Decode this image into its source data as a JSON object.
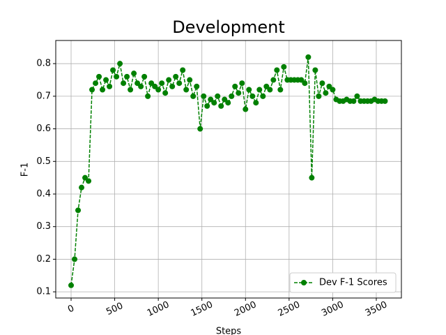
{
  "chart_data": {
    "type": "line",
    "title": "Development",
    "x_label": "Steps",
    "y_label": "F-1",
    "x": [
      0,
      40,
      80,
      120,
      160,
      200,
      240,
      280,
      320,
      360,
      400,
      440,
      480,
      520,
      560,
      600,
      640,
      680,
      720,
      760,
      800,
      840,
      880,
      920,
      960,
      1000,
      1040,
      1080,
      1120,
      1160,
      1200,
      1240,
      1280,
      1320,
      1360,
      1400,
      1440,
      1480,
      1520,
      1560,
      1600,
      1640,
      1680,
      1720,
      1760,
      1800,
      1840,
      1880,
      1920,
      1960,
      2000,
      2040,
      2080,
      2120,
      2160,
      2200,
      2240,
      2280,
      2320,
      2360,
      2400,
      2440,
      2480,
      2520,
      2560,
      2600,
      2640,
      2680,
      2720,
      2760,
      2800,
      2840,
      2880,
      2920,
      2960,
      3000,
      3040,
      3080,
      3120,
      3160,
      3200,
      3240,
      3280,
      3320,
      3360,
      3400,
      3440,
      3480,
      3520,
      3560,
      3600
    ],
    "series": [
      {
        "name": "Dev F-1 Scores",
        "color": "#008000",
        "values": [
          0.12,
          0.2,
          0.35,
          0.42,
          0.45,
          0.44,
          0.72,
          0.74,
          0.76,
          0.72,
          0.75,
          0.73,
          0.78,
          0.76,
          0.8,
          0.74,
          0.76,
          0.72,
          0.77,
          0.74,
          0.73,
          0.76,
          0.7,
          0.74,
          0.73,
          0.72,
          0.74,
          0.71,
          0.75,
          0.73,
          0.76,
          0.74,
          0.78,
          0.72,
          0.75,
          0.7,
          0.73,
          0.6,
          0.7,
          0.67,
          0.69,
          0.68,
          0.7,
          0.67,
          0.69,
          0.68,
          0.7,
          0.73,
          0.71,
          0.74,
          0.66,
          0.72,
          0.7,
          0.68,
          0.72,
          0.7,
          0.73,
          0.72,
          0.75,
          0.78,
          0.72,
          0.79,
          0.75,
          0.75,
          0.75,
          0.75,
          0.75,
          0.74,
          0.82,
          0.45,
          0.78,
          0.7,
          0.74,
          0.71,
          0.73,
          0.72,
          0.69,
          0.685,
          0.685,
          0.69,
          0.685,
          0.685,
          0.7,
          0.685,
          0.685,
          0.685,
          0.685,
          0.69,
          0.685,
          0.685,
          0.685
        ]
      }
    ],
    "xlim": [
      -176,
      3788
    ],
    "xticks": [
      0,
      500,
      1000,
      1500,
      2000,
      2500,
      3000,
      3500
    ],
    "ylim": [
      0.081,
      0.871
    ],
    "yticks": [
      0.1,
      0.2,
      0.3,
      0.4,
      0.5,
      0.6,
      0.7,
      0.8
    ],
    "grid": true,
    "legend": "lower right"
  }
}
